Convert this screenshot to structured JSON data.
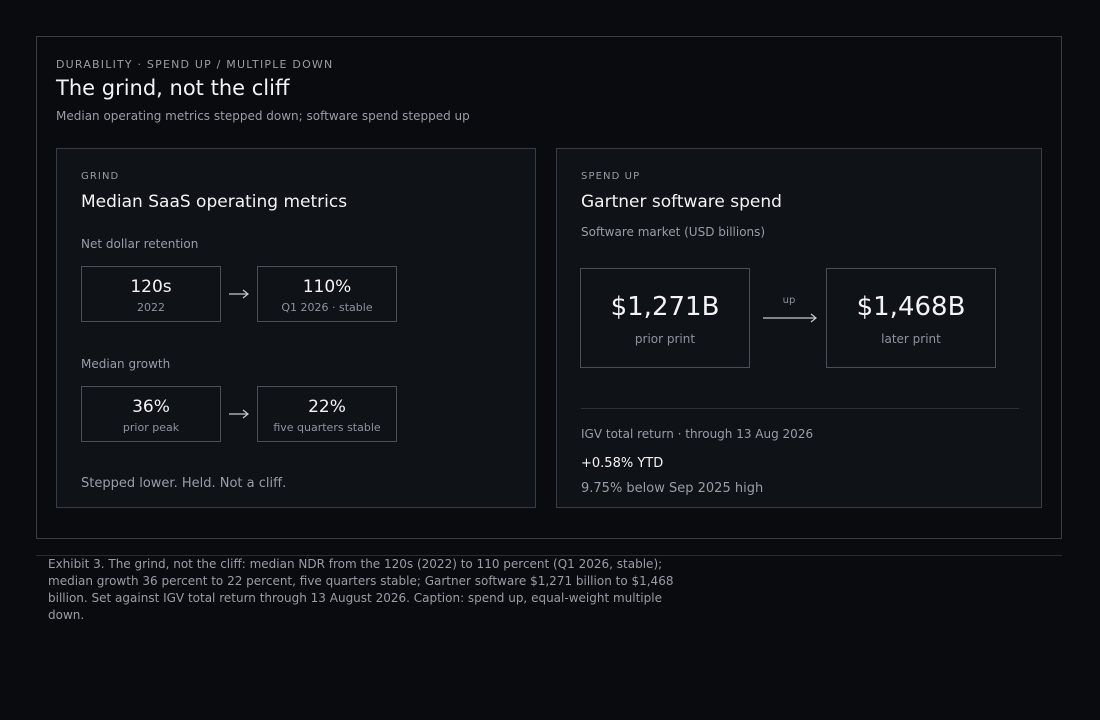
{
  "header": {
    "kicker": "DURABILITY · SPEND UP / MULTIPLE DOWN",
    "title": "The grind, not the cliff",
    "subtitle": "Median operating metrics stepped down; software spend stepped up"
  },
  "left_card": {
    "kicker": "GRIND",
    "title": "Median SaaS operating metrics",
    "ndr": {
      "label": "Net dollar retention",
      "from": {
        "value": "120s",
        "sub": "2022"
      },
      "to": {
        "value": "110%",
        "sub": "Q1 2026 · stable"
      }
    },
    "growth": {
      "label": "Median growth",
      "from": {
        "value": "36%",
        "sub": "prior peak"
      },
      "to": {
        "value": "22%",
        "sub": "five quarters stable"
      }
    },
    "footnote": "Stepped lower. Held. Not a cliff."
  },
  "right_card": {
    "kicker": "SPEND UP",
    "title": "Gartner software spend",
    "label": "Software market (USD billions)",
    "from": {
      "value": "$1,271B",
      "sub": "prior print"
    },
    "arrow_label": "up",
    "to": {
      "value": "$1,468B",
      "sub": "later print"
    },
    "igv_label": "IGV total return · through 13 Aug 2026",
    "ytd": "+0.58% YTD",
    "below_high": "9.75% below Sep 2025 high"
  },
  "caption": "Exhibit 3. The grind, not the cliff: median NDR from the 120s (2022) to 110 percent (Q1 2026, stable); median growth 36 percent to 22 percent, five quarters stable; Gartner software $1,271 billion to $1,468 billion. Set against IGV total return through 13 August 2026. Caption: spend up, equal-weight multiple down.",
  "colors": {
    "background": "#0a0b0f",
    "card": "#0f1217",
    "border": "#3a3d44",
    "text": "#f2f3f5",
    "muted": "#9a9da5"
  }
}
